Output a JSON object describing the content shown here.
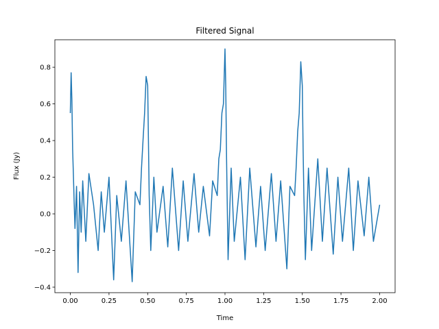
{
  "chart_data": {
    "type": "line",
    "title": "Filtered Signal",
    "xlabel": "Time",
    "ylabel": "Flux (Jy)",
    "xlim": [
      -0.1,
      2.1
    ],
    "ylim": [
      -0.43,
      0.95
    ],
    "xticks": [
      0.0,
      0.25,
      0.5,
      0.75,
      1.0,
      1.25,
      1.5,
      1.75,
      2.0
    ],
    "xtick_labels": [
      "0.00",
      "0.25",
      "0.50",
      "0.75",
      "1.00",
      "1.25",
      "1.50",
      "1.75",
      "2.00"
    ],
    "yticks": [
      -0.4,
      -0.2,
      0.0,
      0.2,
      0.4,
      0.6,
      0.8
    ],
    "ytick_labels": [
      "−0.4",
      "−0.2",
      "0.0",
      "0.2",
      "0.4",
      "0.6",
      "0.8"
    ],
    "grid": false,
    "series": [
      {
        "color": "#1f77b4",
        "x": [
          0.0,
          0.005,
          0.01,
          0.015,
          0.02,
          0.025,
          0.03,
          0.04,
          0.05,
          0.06,
          0.07,
          0.08,
          0.1,
          0.12,
          0.15,
          0.18,
          0.2,
          0.22,
          0.25,
          0.28,
          0.3,
          0.33,
          0.36,
          0.4,
          0.42,
          0.45,
          0.46,
          0.47,
          0.48,
          0.49,
          0.5,
          0.505,
          0.51,
          0.52,
          0.54,
          0.56,
          0.6,
          0.63,
          0.66,
          0.7,
          0.73,
          0.76,
          0.8,
          0.83,
          0.86,
          0.9,
          0.92,
          0.95,
          0.96,
          0.97,
          0.98,
          0.99,
          1.0,
          1.005,
          1.01,
          1.02,
          1.04,
          1.06,
          1.1,
          1.13,
          1.16,
          1.2,
          1.23,
          1.26,
          1.3,
          1.33,
          1.36,
          1.4,
          1.42,
          1.45,
          1.46,
          1.47,
          1.48,
          1.49,
          1.5,
          1.505,
          1.51,
          1.52,
          1.54,
          1.56,
          1.6,
          1.63,
          1.66,
          1.7,
          1.73,
          1.76,
          1.8,
          1.83,
          1.86,
          1.9,
          1.93,
          1.96,
          2.0
        ],
        "y": [
          0.55,
          0.77,
          0.62,
          0.35,
          0.2,
          0.05,
          -0.08,
          0.15,
          -0.32,
          0.12,
          -0.1,
          0.18,
          -0.15,
          0.22,
          0.05,
          -0.2,
          0.12,
          -0.1,
          0.2,
          -0.36,
          0.1,
          -0.15,
          0.18,
          -0.37,
          0.12,
          0.05,
          0.25,
          0.4,
          0.55,
          0.75,
          0.7,
          0.4,
          0.1,
          -0.2,
          0.2,
          -0.1,
          0.15,
          -0.18,
          0.25,
          -0.2,
          0.18,
          -0.15,
          0.22,
          -0.1,
          0.15,
          -0.12,
          0.18,
          0.1,
          0.3,
          0.35,
          0.55,
          0.6,
          0.9,
          0.7,
          0.3,
          -0.25,
          0.25,
          -0.15,
          0.2,
          -0.25,
          0.25,
          -0.18,
          0.15,
          -0.2,
          0.22,
          -0.15,
          0.18,
          -0.3,
          0.15,
          0.1,
          0.25,
          0.45,
          0.55,
          0.83,
          0.7,
          0.35,
          0.1,
          -0.25,
          0.25,
          -0.2,
          0.3,
          -0.15,
          0.25,
          -0.22,
          0.2,
          -0.15,
          0.25,
          -0.2,
          0.18,
          -0.12,
          0.2,
          -0.15,
          0.05
        ]
      }
    ]
  }
}
